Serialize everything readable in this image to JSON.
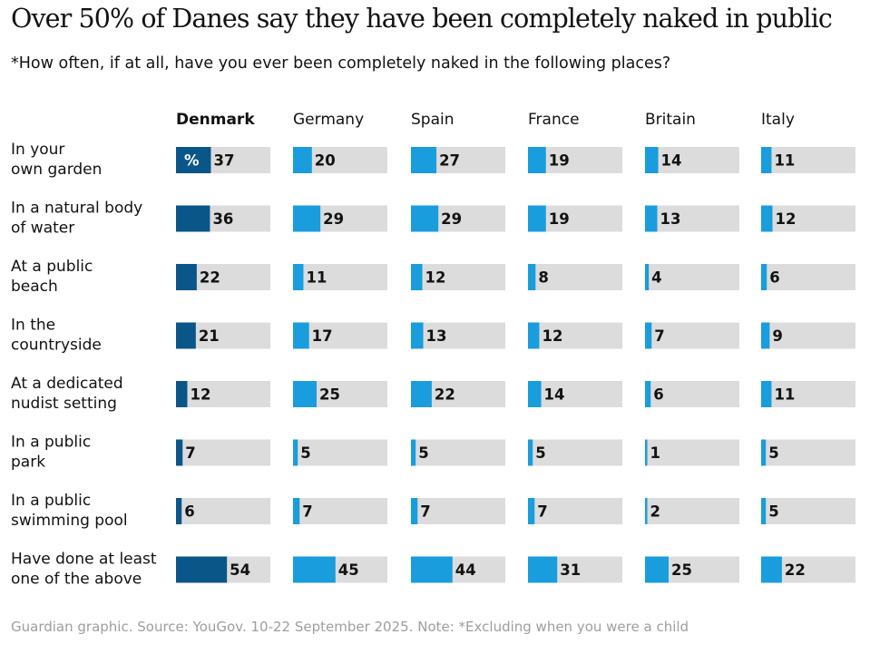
{
  "title": "Over 50% of Danes say they have been completely naked in public",
  "subtitle": "*How often, if at all, have you ever been completely naked in the following places?",
  "source": "Guardian graphic. Source: YouGov. 10-22 September 2025. Note: *Excluding when you were a child",
  "colors": {
    "highlight": "#0b5688",
    "series": "#199ddc",
    "track": "#dcdcdc",
    "text": "#121212",
    "source": "#9e9e9e"
  },
  "chart_data": {
    "type": "bar",
    "orientation": "horizontal-small-multiples",
    "unit_label": "%",
    "xlim": [
      0,
      100
    ],
    "highlight_series": "Denmark",
    "categories": [
      [
        "In your",
        "own garden"
      ],
      [
        "In a natural body",
        "of water"
      ],
      [
        "At a public",
        "beach"
      ],
      [
        "In the",
        "countryside"
      ],
      [
        "At a dedicated",
        "nudist setting"
      ],
      [
        "In a public",
        "park"
      ],
      [
        "In a public",
        "swimming pool"
      ],
      [
        "Have done at least",
        "one of the above"
      ]
    ],
    "series": [
      {
        "name": "Denmark",
        "values": [
          37,
          36,
          22,
          21,
          12,
          7,
          6,
          54
        ]
      },
      {
        "name": "Germany",
        "values": [
          20,
          29,
          11,
          17,
          25,
          5,
          7,
          45
        ]
      },
      {
        "name": "Spain",
        "values": [
          27,
          29,
          12,
          13,
          22,
          5,
          7,
          44
        ]
      },
      {
        "name": "France",
        "values": [
          19,
          19,
          8,
          12,
          14,
          5,
          7,
          31
        ]
      },
      {
        "name": "Britain",
        "values": [
          14,
          13,
          4,
          7,
          6,
          1,
          2,
          25
        ]
      },
      {
        "name": "Italy",
        "values": [
          11,
          12,
          6,
          9,
          11,
          5,
          5,
          22
        ]
      }
    ]
  }
}
